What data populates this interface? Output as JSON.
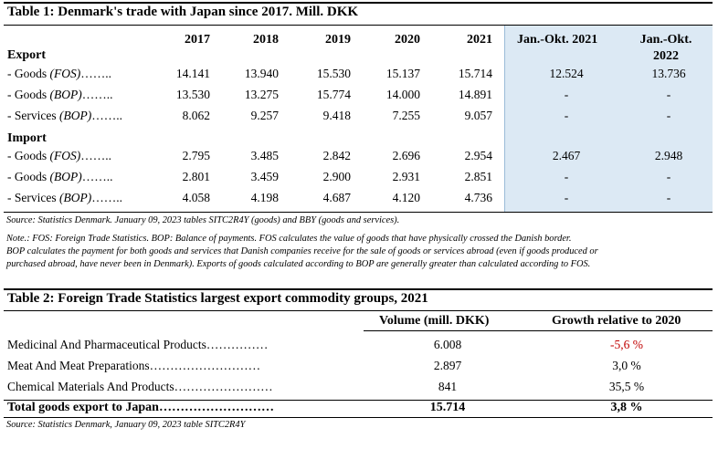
{
  "table1": {
    "title": "Table 1: Denmark's trade with Japan since 2017. Mill. DKK",
    "years": [
      "2017",
      "2018",
      "2019",
      "2020",
      "2021"
    ],
    "period1": "Jan.-Okt. 2021",
    "period2_line1": "Jan.-Okt.",
    "period2_line2": "2022",
    "export_label": "Export",
    "import_label": "Import",
    "rows": [
      {
        "label": "- Goods ",
        "tag": "(FOS)",
        "dots": "……..",
        "values": [
          "14.141",
          "13.940",
          "15.530",
          "15.137",
          "15.714"
        ],
        "p1": "12.524",
        "p2": "13.736"
      },
      {
        "label": "- Goods ",
        "tag": "(BOP)",
        "dots": "……..",
        "values": [
          "13.530",
          "13.275",
          "15.774",
          "14.000",
          "14.891"
        ],
        "p1": "-",
        "p2": "-"
      },
      {
        "label": "- Services ",
        "tag": "(BOP)",
        "dots": "……..",
        "values": [
          "8.062",
          "9.257",
          "9.418",
          "7.255",
          "9.057"
        ],
        "p1": "-",
        "p2": "-"
      },
      {
        "label": "- Goods ",
        "tag": "(FOS)",
        "dots": "……..",
        "values": [
          "2.795",
          "3.485",
          "2.842",
          "2.696",
          "2.954"
        ],
        "p1": "2.467",
        "p2": "2.948"
      },
      {
        "label": "- Goods ",
        "tag": "(BOP)",
        "dots": "……..",
        "values": [
          "2.801",
          "3.459",
          "2.900",
          "2.931",
          "2.851"
        ],
        "p1": "-",
        "p2": "-"
      },
      {
        "label": "- Services ",
        "tag": "(BOP)",
        "dots": "……..",
        "values": [
          "4.058",
          "4.198",
          "4.687",
          "4.120",
          "4.736"
        ],
        "p1": "-",
        "p2": "-"
      }
    ],
    "source": "Source: Statistics Denmark. January 09, 2023 tables SITC2R4Y (goods) and BBY (goods and services).",
    "note_lines": [
      "Note.: FOS: Foreign Trade Statistics. BOP: Balance of payments. FOS calculates the value of goods that have physically crossed the Danish border.",
      "BOP calculates the payment for both goods and services that Danish companies receive for the sale of goods or services abroad (even if goods produced or",
      "purchased abroad, have never been in Denmark). Exports of goods calculated according to BOP are generally greater than calculated according to FOS."
    ]
  },
  "table2": {
    "title": "Table 2: Foreign Trade Statistics largest export commodity groups, 2021",
    "col_volume": "Volume (mill. DKK)",
    "col_growth": "Growth relative to 2020",
    "rows": [
      {
        "label": "Medicinal And Pharmaceutical Products……………",
        "volume": "6.008",
        "growth": "-5,6 %",
        "negative": true
      },
      {
        "label": "Meat And Meat Preparations………………………",
        "volume": "2.897",
        "growth": "3,0 %",
        "negative": false
      },
      {
        "label": "Chemical Materials And Products……………………",
        "volume": "841",
        "growth": "35,5 %",
        "negative": false
      }
    ],
    "total": {
      "label": "Total goods export to Japan………………………",
      "volume": "15.714",
      "growth": "3,8 %"
    },
    "source": "Source: Statistics Denmark, January 09, 2023 table SITC2R4Y"
  },
  "colors": {
    "shade": "#dce9f4",
    "negative": "#c00000"
  }
}
